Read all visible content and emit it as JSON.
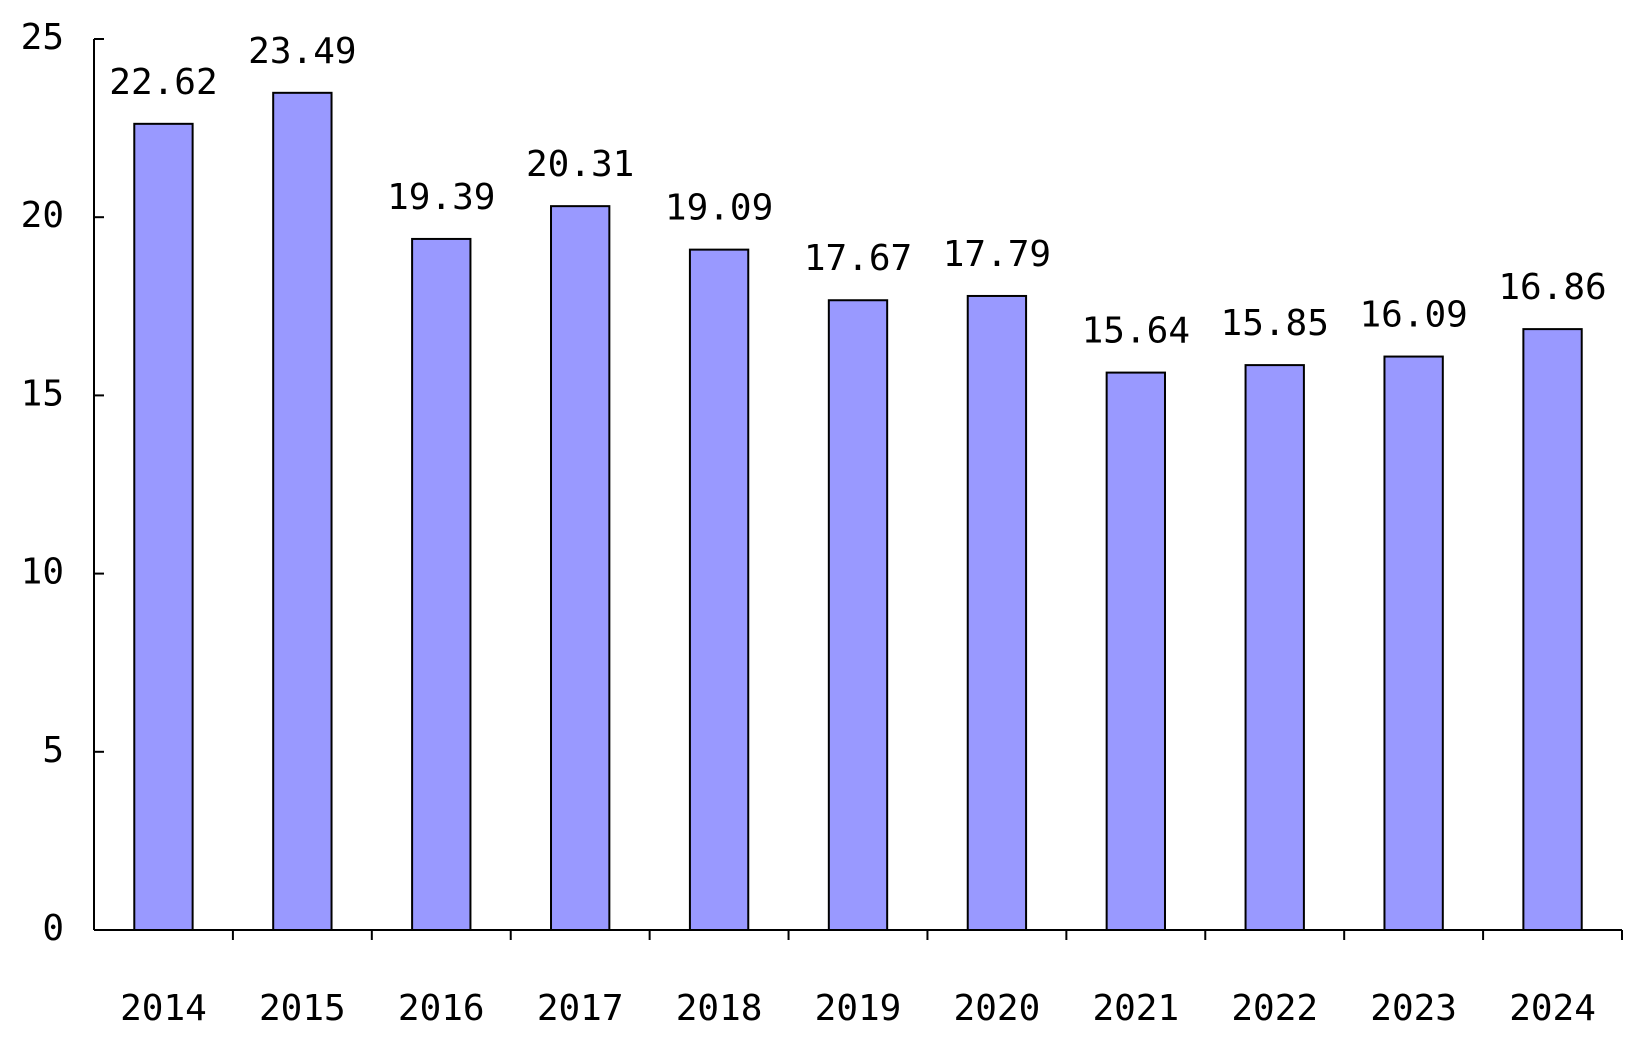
{
  "chart_data": {
    "type": "bar",
    "categories": [
      "2014",
      "2015",
      "2016",
      "2017",
      "2018",
      "2019",
      "2020",
      "2021",
      "2022",
      "2023",
      "2024"
    ],
    "values": [
      22.62,
      23.49,
      19.39,
      20.31,
      19.09,
      17.67,
      17.79,
      15.64,
      15.85,
      16.09,
      16.86
    ],
    "color": "#9999ff",
    "ylim": [
      0,
      25
    ],
    "yticks": [
      0,
      5,
      10,
      15,
      20,
      25
    ],
    "grid": false
  }
}
